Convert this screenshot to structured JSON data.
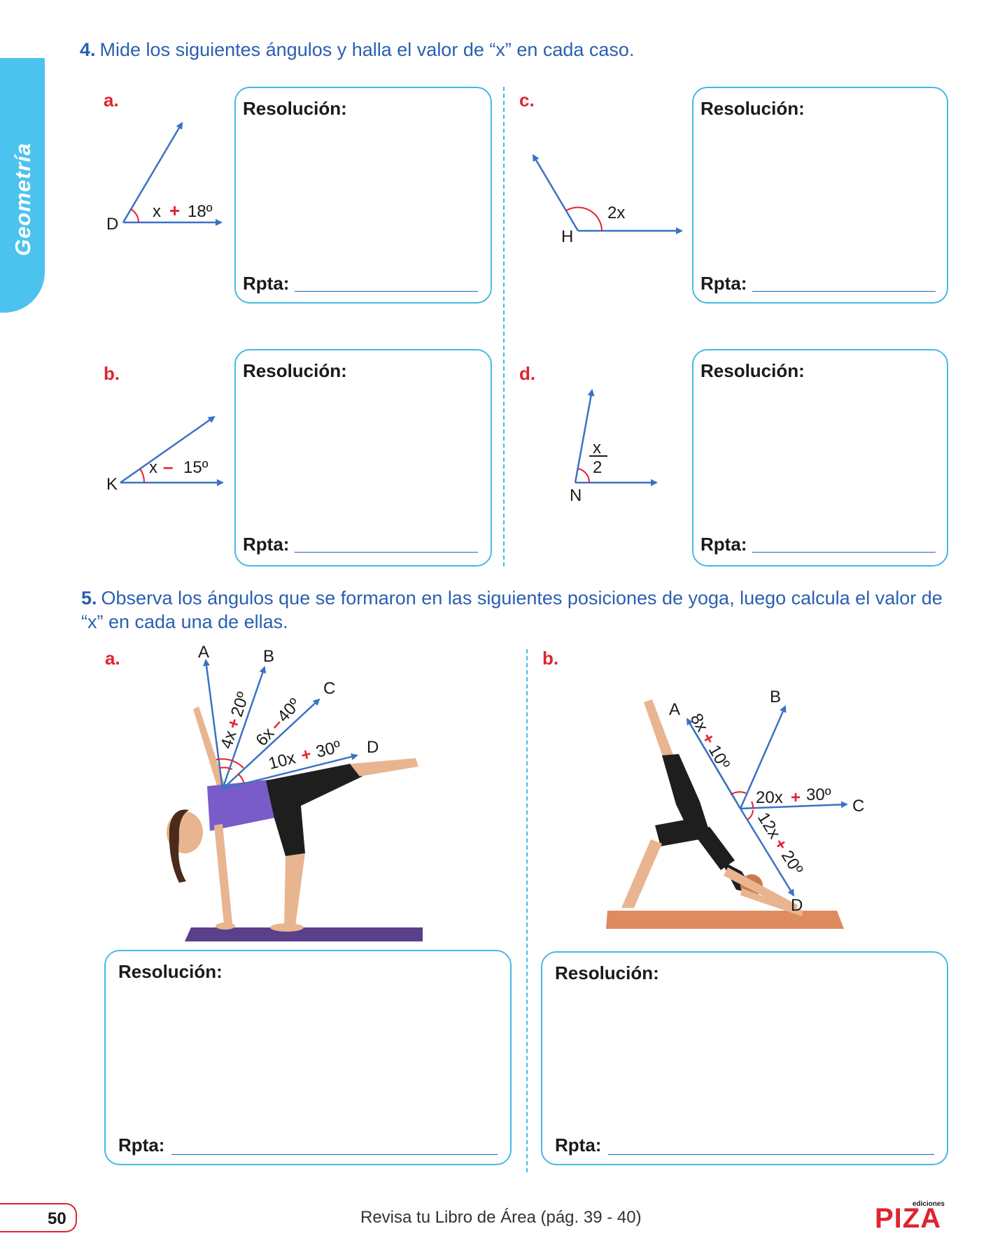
{
  "side_tab": {
    "label": "Geometría",
    "color": "#4bc3ee"
  },
  "q4": {
    "number": "4.",
    "text": "Mide los siguientes ángulos y halla el valor de “x” en cada caso.",
    "items": [
      {
        "letter": "a.",
        "vertex": "D",
        "expr_left": "x",
        "op": "+",
        "expr_right": "18º"
      },
      {
        "letter": "b.",
        "vertex": "K",
        "expr_left": "x",
        "op": "–",
        "expr_right": "15º"
      },
      {
        "letter": "c.",
        "vertex": "H",
        "expr": "2x"
      },
      {
        "letter": "d.",
        "vertex": "N",
        "numerator": "x",
        "denominator": "2"
      }
    ]
  },
  "q5": {
    "number": "5.",
    "text": "Observa los ángulos que se formaron en las siguientes posiciones de yoga, luego calcula el valor de “x” en cada una de ellas.",
    "a": {
      "letter": "a.",
      "labels": [
        "A",
        "B",
        "C",
        "D"
      ],
      "angle1": {
        "left": "4x",
        "op": "+",
        "right": "20º"
      },
      "angle2": {
        "left": "6x",
        "op": "–",
        "right": "40º"
      },
      "angle3": {
        "left": "10x",
        "op": "+",
        "right": "30º"
      }
    },
    "b": {
      "letter": "b.",
      "labels": [
        "A",
        "B",
        "C",
        "D"
      ],
      "angle1": {
        "left": "8x",
        "op": "+",
        "right": "10º"
      },
      "angle2": {
        "left": "20x",
        "op": "+",
        "right": "30º"
      },
      "angle3": {
        "left": "12x",
        "op": "+",
        "right": "20º"
      }
    }
  },
  "box": {
    "resolution": "Resolución:",
    "answer": "Rpta:"
  },
  "footer": {
    "page": "50",
    "text": "Revisa tu Libro de Área (pág. 39 - 40)",
    "logo_small": "ediciones",
    "logo_big": "PIZA"
  },
  "colors": {
    "blue": "#2a5fb0",
    "arrow": "#3a72c4",
    "red": "#e1232f",
    "cyan": "#46b9e6"
  }
}
